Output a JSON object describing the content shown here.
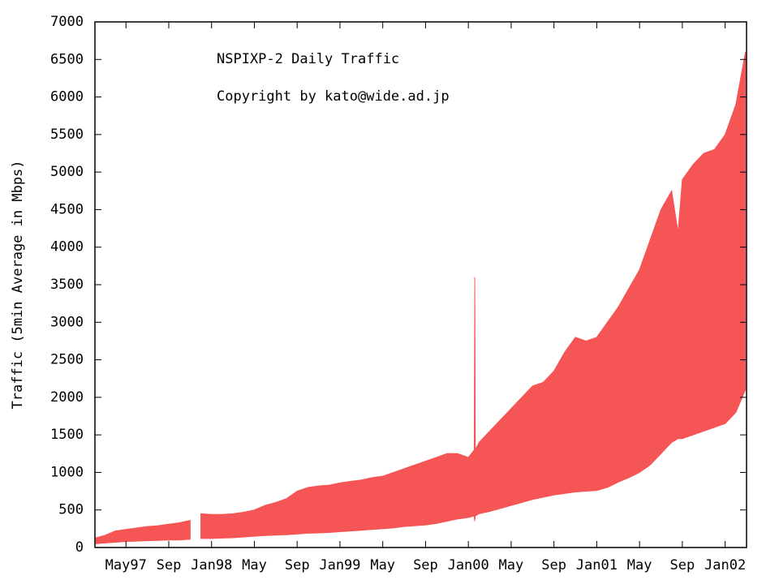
{
  "chart_data": {
    "type": "band",
    "title": "NSPIXP-2 Daily Traffic",
    "subtitle": "Copyright by kato@wide.ad.jp",
    "y_label": "Traffic (5min Average in Mbps)",
    "color": "#f65555",
    "x": [
      1.2,
      2,
      3,
      4,
      5,
      6,
      7,
      8,
      9,
      10,
      10.3,
      11,
      12,
      13,
      14,
      15,
      16,
      17,
      18,
      19,
      20,
      21,
      22,
      23,
      24,
      25,
      26,
      27,
      28,
      29,
      30,
      31,
      32,
      33,
      34,
      35,
      36,
      36.55,
      36.6,
      36.65,
      37,
      38,
      39,
      40,
      41,
      42,
      43,
      44,
      45,
      46,
      47,
      48,
      49,
      50,
      51,
      52,
      53,
      54,
      55,
      55.6,
      56,
      57,
      58,
      59,
      60,
      61,
      61.9
    ],
    "high": [
      130,
      160,
      220,
      240,
      260,
      280,
      290,
      310,
      330,
      360,
      null,
      450,
      440,
      440,
      450,
      470,
      500,
      560,
      600,
      650,
      750,
      800,
      820,
      830,
      860,
      880,
      900,
      930,
      950,
      1000,
      1050,
      1100,
      1150,
      1200,
      1250,
      1250,
      1200,
      1300,
      3600,
      1300,
      1400,
      1550,
      1700,
      1850,
      2000,
      2150,
      2200,
      2350,
      2600,
      2800,
      2750,
      2800,
      3000,
      3200,
      3450,
      3700,
      4100,
      4500,
      4750,
      4200,
      4900,
      5100,
      5250,
      5300,
      5500,
      5900,
      6600
    ],
    "low": [
      50,
      60,
      70,
      80,
      85,
      90,
      95,
      100,
      100,
      110,
      null,
      120,
      120,
      125,
      130,
      140,
      150,
      160,
      165,
      170,
      180,
      190,
      195,
      200,
      210,
      220,
      230,
      240,
      250,
      260,
      280,
      290,
      300,
      320,
      350,
      380,
      400,
      420,
      350,
      420,
      450,
      480,
      520,
      560,
      600,
      640,
      670,
      700,
      720,
      740,
      750,
      760,
      800,
      870,
      930,
      1000,
      1100,
      1250,
      1400,
      1450,
      1450,
      1500,
      1550,
      1600,
      1650,
      1800,
      2100
    ],
    "xlim": [
      1.1,
      62
    ],
    "xticks": [
      {
        "value": 4,
        "label": "May97"
      },
      {
        "value": 8,
        "label": "Sep"
      },
      {
        "value": 12,
        "label": "Jan98"
      },
      {
        "value": 16,
        "label": "May"
      },
      {
        "value": 20,
        "label": "Sep"
      },
      {
        "value": 24,
        "label": "Jan99"
      },
      {
        "value": 28,
        "label": "May"
      },
      {
        "value": 32,
        "label": "Sep"
      },
      {
        "value": 36,
        "label": "Jan00"
      },
      {
        "value": 40,
        "label": "May"
      },
      {
        "value": 44,
        "label": "Sep"
      },
      {
        "value": 48,
        "label": "Jan01"
      },
      {
        "value": 52,
        "label": "May"
      },
      {
        "value": 56,
        "label": "Sep"
      },
      {
        "value": 60,
        "label": "Jan02"
      }
    ],
    "ylim": [
      0,
      7000
    ],
    "yticks": [
      0,
      500,
      1000,
      1500,
      2000,
      2500,
      3000,
      3500,
      4000,
      4500,
      5000,
      5500,
      6000,
      6500,
      7000
    ]
  }
}
